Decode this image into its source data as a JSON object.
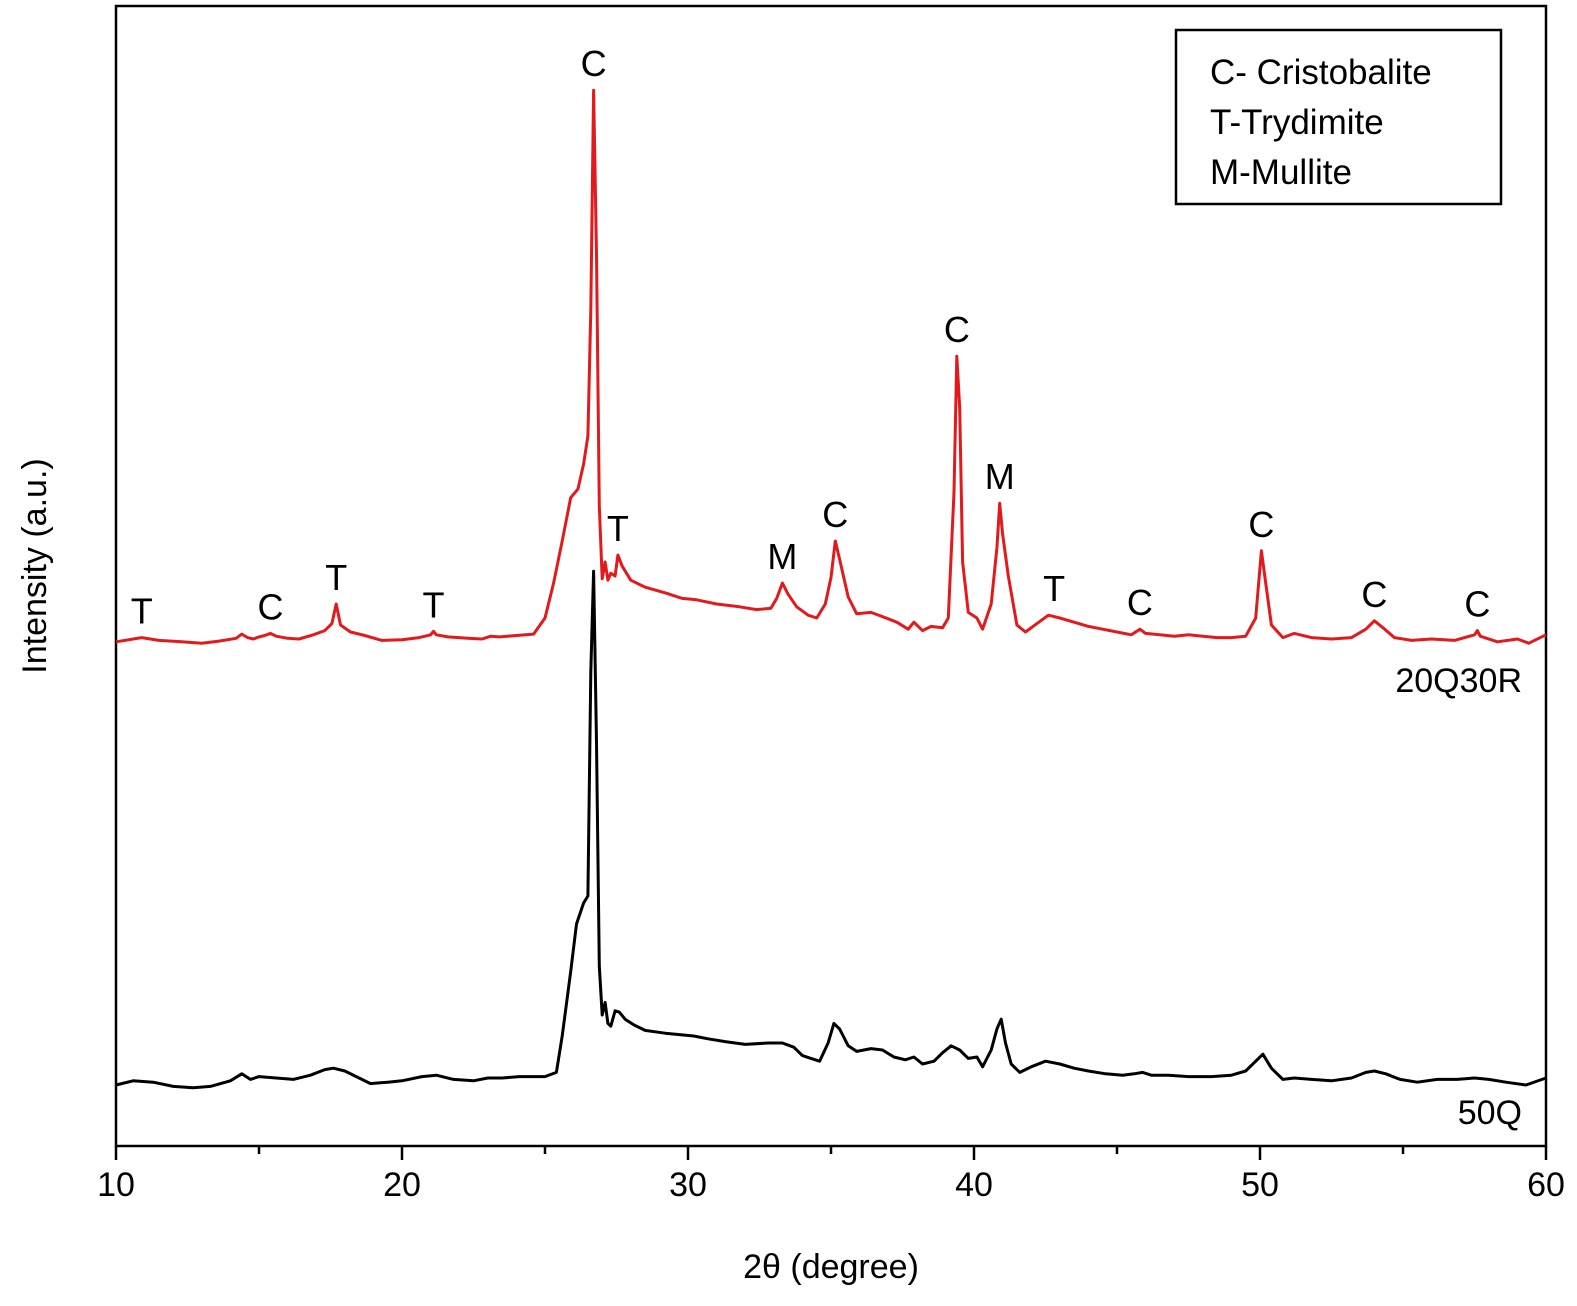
{
  "chart_data": {
    "type": "line",
    "title": "",
    "xlabel": "2θ (degree)",
    "ylabel": "Intensity (a.u.)",
    "xlim": [
      10,
      60
    ],
    "xticks": [
      10,
      20,
      30,
      40,
      50,
      60
    ],
    "xtick_labels": [
      "10",
      "20",
      "30",
      "40",
      "50",
      "60"
    ],
    "y_axis_values_shown": false,
    "grid": false,
    "legend_position": "top-right",
    "legend": [
      "C- Cristobalite",
      "T-Trydimite",
      "M-Mullite"
    ],
    "series": [
      {
        "name": "20Q30R",
        "color": "#e31a1c",
        "points": [
          [
            10,
            13
          ],
          [
            10.9,
            16
          ],
          [
            11.5,
            14
          ],
          [
            12.3,
            13
          ],
          [
            13.0,
            12
          ],
          [
            13.6,
            13.5
          ],
          [
            14.2,
            15.5
          ],
          [
            14.4,
            18.5
          ],
          [
            14.6,
            16
          ],
          [
            14.8,
            15
          ],
          [
            15.0,
            16.5
          ],
          [
            15.2,
            17.5
          ],
          [
            15.4,
            19
          ],
          [
            15.6,
            17
          ],
          [
            16.0,
            15.5
          ],
          [
            16.4,
            15
          ],
          [
            16.9,
            18
          ],
          [
            17.3,
            21
          ],
          [
            17.55,
            26
          ],
          [
            17.7,
            40
          ],
          [
            17.85,
            25
          ],
          [
            18.2,
            20
          ],
          [
            18.7,
            17.5
          ],
          [
            19.3,
            14
          ],
          [
            20.0,
            14.5
          ],
          [
            20.6,
            16
          ],
          [
            21.0,
            18
          ],
          [
            21.1,
            20.5
          ],
          [
            21.2,
            18
          ],
          [
            21.6,
            16.5
          ],
          [
            22.3,
            15.5
          ],
          [
            22.8,
            15
          ],
          [
            23.1,
            17
          ],
          [
            23.4,
            16.5
          ],
          [
            24.0,
            17.5
          ],
          [
            24.6,
            18.5
          ],
          [
            25.0,
            30
          ],
          [
            25.3,
            55
          ],
          [
            25.6,
            85
          ],
          [
            25.9,
            116
          ],
          [
            26.15,
            122
          ],
          [
            26.35,
            140
          ],
          [
            26.5,
            160
          ],
          [
            26.6,
            250
          ],
          [
            26.7,
            407
          ],
          [
            26.8,
            290
          ],
          [
            26.9,
            110
          ],
          [
            27.0,
            58
          ],
          [
            27.1,
            70
          ],
          [
            27.2,
            57
          ],
          [
            27.3,
            62
          ],
          [
            27.45,
            60
          ],
          [
            27.55,
            75
          ],
          [
            27.7,
            67
          ],
          [
            28.0,
            57
          ],
          [
            28.5,
            52
          ],
          [
            29.2,
            48
          ],
          [
            29.8,
            44
          ],
          [
            30.3,
            43
          ],
          [
            31.0,
            40
          ],
          [
            31.8,
            38
          ],
          [
            32.4,
            36
          ],
          [
            32.9,
            37
          ],
          [
            33.1,
            44
          ],
          [
            33.3,
            55
          ],
          [
            33.5,
            47
          ],
          [
            33.8,
            38
          ],
          [
            34.2,
            32
          ],
          [
            34.5,
            30
          ],
          [
            34.8,
            40
          ],
          [
            35.0,
            59
          ],
          [
            35.15,
            85
          ],
          [
            35.3,
            72
          ],
          [
            35.6,
            45
          ],
          [
            35.9,
            33
          ],
          [
            36.4,
            34
          ],
          [
            36.8,
            31
          ],
          [
            37.3,
            27
          ],
          [
            37.7,
            22
          ],
          [
            37.9,
            27
          ],
          [
            38.2,
            21
          ],
          [
            38.5,
            24
          ],
          [
            38.9,
            23
          ],
          [
            39.1,
            30
          ],
          [
            39.3,
            120
          ],
          [
            39.4,
            217
          ],
          [
            39.5,
            180
          ],
          [
            39.6,
            70
          ],
          [
            39.8,
            34
          ],
          [
            40.1,
            30
          ],
          [
            40.3,
            22
          ],
          [
            40.6,
            40
          ],
          [
            40.8,
            80
          ],
          [
            40.9,
            112
          ],
          [
            41.0,
            90
          ],
          [
            41.2,
            60
          ],
          [
            41.5,
            25
          ],
          [
            41.8,
            20
          ],
          [
            42.2,
            26
          ],
          [
            42.6,
            32
          ],
          [
            43.0,
            30
          ],
          [
            43.5,
            27
          ],
          [
            44.0,
            24
          ],
          [
            44.5,
            22
          ],
          [
            45.0,
            20
          ],
          [
            45.5,
            18
          ],
          [
            45.8,
            22
          ],
          [
            46.0,
            19
          ],
          [
            46.5,
            18
          ],
          [
            47.0,
            17
          ],
          [
            47.5,
            18
          ],
          [
            48.0,
            17
          ],
          [
            48.5,
            16
          ],
          [
            49.0,
            16
          ],
          [
            49.5,
            17
          ],
          [
            49.85,
            30
          ],
          [
            50.05,
            78
          ],
          [
            50.2,
            55
          ],
          [
            50.4,
            25
          ],
          [
            50.8,
            16
          ],
          [
            51.2,
            19
          ],
          [
            51.8,
            16
          ],
          [
            52.5,
            15
          ],
          [
            53.2,
            16
          ],
          [
            53.7,
            22
          ],
          [
            54.0,
            28
          ],
          [
            54.3,
            23
          ],
          [
            54.7,
            16
          ],
          [
            55.3,
            14
          ],
          [
            56.0,
            15
          ],
          [
            56.8,
            14
          ],
          [
            57.5,
            18
          ],
          [
            57.6,
            21
          ],
          [
            57.7,
            17
          ],
          [
            58.3,
            13
          ],
          [
            59.0,
            15
          ],
          [
            59.4,
            12
          ],
          [
            60,
            18
          ]
        ]
      },
      {
        "name": "50Q",
        "color": "#000000",
        "points": [
          [
            10,
            5
          ],
          [
            10.6,
            8
          ],
          [
            11.3,
            7
          ],
          [
            12.0,
            4
          ],
          [
            12.7,
            3
          ],
          [
            13.3,
            4
          ],
          [
            14.0,
            8
          ],
          [
            14.4,
            13
          ],
          [
            14.7,
            9
          ],
          [
            15.0,
            11
          ],
          [
            15.6,
            10
          ],
          [
            16.2,
            9
          ],
          [
            16.8,
            12
          ],
          [
            17.3,
            16
          ],
          [
            17.6,
            17
          ],
          [
            18.0,
            15
          ],
          [
            18.5,
            10
          ],
          [
            18.9,
            6
          ],
          [
            19.5,
            7
          ],
          [
            20.0,
            8
          ],
          [
            20.7,
            11
          ],
          [
            21.2,
            12
          ],
          [
            21.8,
            9
          ],
          [
            22.5,
            8
          ],
          [
            23.0,
            10
          ],
          [
            23.5,
            10
          ],
          [
            24.1,
            11
          ],
          [
            24.5,
            11
          ],
          [
            25.0,
            11
          ],
          [
            25.4,
            14
          ],
          [
            25.6,
            40
          ],
          [
            25.9,
            86
          ],
          [
            26.1,
            120
          ],
          [
            26.35,
            135
          ],
          [
            26.5,
            140
          ],
          [
            26.6,
            300
          ],
          [
            26.7,
            372
          ],
          [
            26.8,
            250
          ],
          [
            26.9,
            90
          ],
          [
            27.0,
            55
          ],
          [
            27.1,
            64
          ],
          [
            27.2,
            49
          ],
          [
            27.3,
            47
          ],
          [
            27.45,
            58
          ],
          [
            27.6,
            57
          ],
          [
            27.8,
            52
          ],
          [
            28.1,
            48
          ],
          [
            28.5,
            44
          ],
          [
            29.2,
            42
          ],
          [
            29.7,
            41
          ],
          [
            30.2,
            40
          ],
          [
            30.7,
            38
          ],
          [
            31.3,
            36
          ],
          [
            32.0,
            34
          ],
          [
            32.8,
            35
          ],
          [
            33.3,
            35
          ],
          [
            33.7,
            32
          ],
          [
            34.0,
            26
          ],
          [
            34.3,
            24
          ],
          [
            34.6,
            22
          ],
          [
            34.9,
            35
          ],
          [
            35.1,
            49
          ],
          [
            35.3,
            45
          ],
          [
            35.6,
            33
          ],
          [
            35.9,
            29
          ],
          [
            36.4,
            31
          ],
          [
            36.8,
            30
          ],
          [
            37.2,
            25
          ],
          [
            37.6,
            23
          ],
          [
            37.9,
            25
          ],
          [
            38.2,
            20
          ],
          [
            38.6,
            22
          ],
          [
            38.9,
            28
          ],
          [
            39.2,
            33
          ],
          [
            39.5,
            30
          ],
          [
            39.8,
            24
          ],
          [
            40.1,
            25
          ],
          [
            40.3,
            18
          ],
          [
            40.6,
            30
          ],
          [
            40.8,
            45
          ],
          [
            40.95,
            52
          ],
          [
            41.1,
            35
          ],
          [
            41.3,
            20
          ],
          [
            41.6,
            14
          ],
          [
            42.0,
            18
          ],
          [
            42.5,
            22
          ],
          [
            43.0,
            20
          ],
          [
            43.5,
            17
          ],
          [
            44.0,
            15
          ],
          [
            44.6,
            13
          ],
          [
            45.2,
            12
          ],
          [
            45.6,
            13
          ],
          [
            45.9,
            14
          ],
          [
            46.2,
            12
          ],
          [
            46.8,
            12
          ],
          [
            47.5,
            11
          ],
          [
            48.3,
            11
          ],
          [
            49.0,
            12
          ],
          [
            49.5,
            15
          ],
          [
            49.9,
            23
          ],
          [
            50.1,
            27
          ],
          [
            50.4,
            17
          ],
          [
            50.8,
            9
          ],
          [
            51.2,
            10
          ],
          [
            51.8,
            9
          ],
          [
            52.5,
            8
          ],
          [
            53.2,
            10
          ],
          [
            53.7,
            14
          ],
          [
            54.0,
            15
          ],
          [
            54.4,
            13
          ],
          [
            54.9,
            9
          ],
          [
            55.5,
            7
          ],
          [
            56.2,
            9
          ],
          [
            56.9,
            9
          ],
          [
            57.5,
            10
          ],
          [
            58.0,
            9
          ],
          [
            58.6,
            7
          ],
          [
            59.3,
            5
          ],
          [
            60,
            10
          ]
        ]
      }
    ],
    "annotations": [
      {
        "text": "T",
        "x": 10.9,
        "series": "20Q30R"
      },
      {
        "text": "C",
        "x": 15.4,
        "series": "20Q30R"
      },
      {
        "text": "T",
        "x": 17.7,
        "series": "20Q30R"
      },
      {
        "text": "T",
        "x": 21.1,
        "series": "20Q30R"
      },
      {
        "text": "C",
        "x": 26.7,
        "series": "20Q30R"
      },
      {
        "text": "T",
        "x": 27.55,
        "series": "20Q30R"
      },
      {
        "text": "M",
        "x": 33.3,
        "series": "20Q30R"
      },
      {
        "text": "C",
        "x": 35.15,
        "series": "20Q30R"
      },
      {
        "text": "C",
        "x": 39.4,
        "series": "20Q30R"
      },
      {
        "text": "M",
        "x": 40.9,
        "series": "20Q30R"
      },
      {
        "text": "T",
        "x": 42.8,
        "series": "20Q30R"
      },
      {
        "text": "C",
        "x": 45.8,
        "series": "20Q30R"
      },
      {
        "text": "C",
        "x": 50.05,
        "series": "20Q30R"
      },
      {
        "text": "C",
        "x": 54.0,
        "series": "20Q30R"
      },
      {
        "text": "C",
        "x": 57.6,
        "series": "20Q30R"
      }
    ]
  }
}
